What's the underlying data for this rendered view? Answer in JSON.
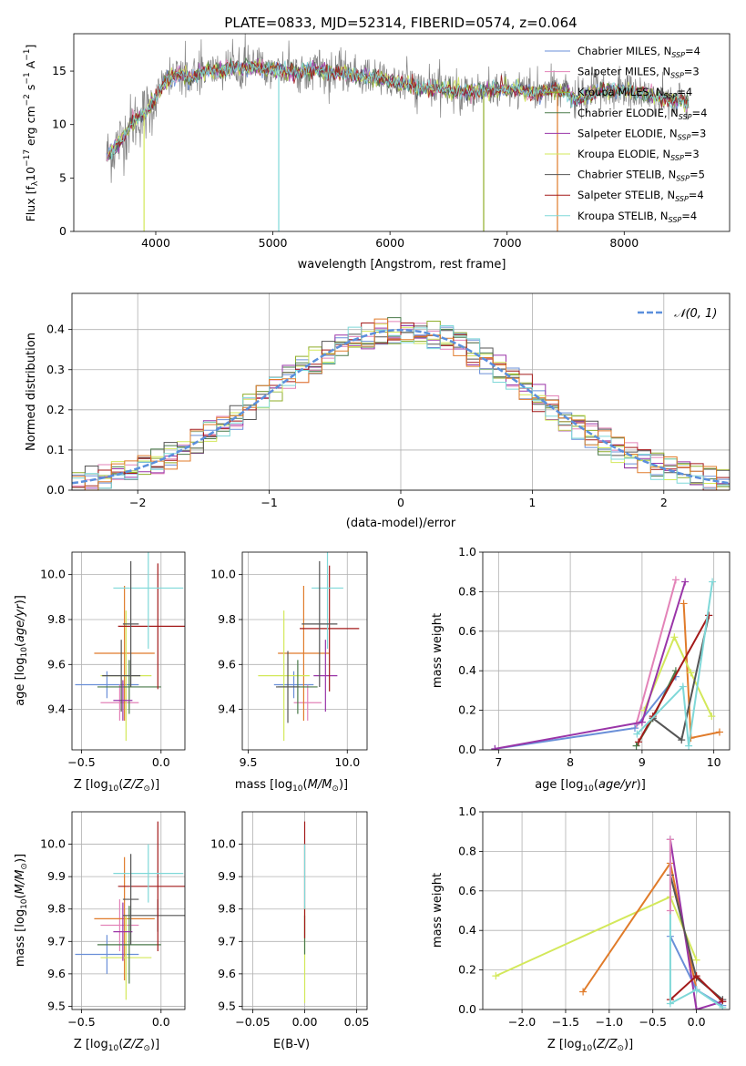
{
  "figure": {
    "title": "PLATE=0833, MJD=52314, FIBERID=0574, z=0.064"
  },
  "colors": {
    "Chabrier MILES": "#6a8fd8",
    "Salpeter MILES": "#e383b8",
    "Kroupa MILES": "#8fae2a",
    "Chabrier ELODIE": "#4a7a4a",
    "Salpeter ELODIE": "#9a35a8",
    "Kroupa ELODIE": "#d3e85a",
    "Chabrier STELIB": "#555555",
    "Salpeter STELIB": "#a31a1a",
    "Kroupa STELIB": "#7fd8d8",
    "orange": "#e07b2a",
    "gray": "#808080"
  },
  "chart_data": [
    {
      "id": "spectrum",
      "type": "line",
      "title": "PLATE=0833, MJD=52314, FIBERID=0574, z=0.064",
      "xlabel": "wavelength [Angstrom, rest frame]",
      "ylabel": "Flux [f_λ 10^-17 erg cm^-2 s^-1 A^-1]",
      "xlim": [
        3300,
        8900
      ],
      "ylim": [
        0,
        18.5
      ],
      "xticks": [
        4000,
        5000,
        6000,
        7000,
        8000
      ],
      "yticks": [
        0,
        5,
        10,
        15
      ],
      "grid": false,
      "legend_position": "top-right",
      "legend": [
        {
          "name": "Chabrier MILES",
          "nssp": "4",
          "color": "#6a8fd8"
        },
        {
          "name": "Salpeter MILES",
          "nssp": "3",
          "color": "#e383b8"
        },
        {
          "name": "Kroupa MILES",
          "nssp": "4",
          "color": "#8fae2a"
        },
        {
          "name": "Chabrier ELODIE",
          "nssp": "4",
          "color": "#4a7a4a"
        },
        {
          "name": "Salpeter ELODIE",
          "nssp": "3",
          "color": "#9a35a8"
        },
        {
          "name": "Kroupa ELODIE",
          "nssp": "3",
          "color": "#d3e85a"
        },
        {
          "name": "Chabrier STELIB",
          "nssp": "5",
          "color": "#555555"
        },
        {
          "name": "Salpeter STELIB",
          "nssp": "4",
          "color": "#a31a1a"
        },
        {
          "name": "Kroupa STELIB",
          "nssp": "4",
          "color": "#7fd8d8"
        }
      ],
      "continuum": [
        [
          3580,
          7.0
        ],
        [
          3700,
          8.5
        ],
        [
          3800,
          10.2
        ],
        [
          3900,
          11.0
        ],
        [
          3950,
          11.5
        ],
        [
          4000,
          12.5
        ],
        [
          4100,
          14.3
        ],
        [
          4200,
          14.8
        ],
        [
          4300,
          14.3
        ],
        [
          4400,
          15.0
        ],
        [
          4500,
          15.0
        ],
        [
          4600,
          15.2
        ],
        [
          4700,
          15.4
        ],
        [
          4800,
          15.4
        ],
        [
          4900,
          15.3
        ],
        [
          5000,
          15.2
        ],
        [
          5100,
          15.0
        ],
        [
          5200,
          14.9
        ],
        [
          5300,
          15.1
        ],
        [
          5400,
          15.1
        ],
        [
          5500,
          14.9
        ],
        [
          5600,
          14.8
        ],
        [
          5700,
          14.6
        ],
        [
          5800,
          14.5
        ],
        [
          5900,
          14.3
        ],
        [
          6000,
          14.1
        ],
        [
          6100,
          13.8
        ],
        [
          6200,
          13.6
        ],
        [
          6300,
          13.4
        ],
        [
          6400,
          13.4
        ],
        [
          6500,
          13.2
        ],
        [
          6600,
          13.1
        ],
        [
          6700,
          13.1
        ],
        [
          6800,
          13.1
        ],
        [
          6900,
          13.3
        ],
        [
          7000,
          13.3
        ],
        [
          7100,
          13.3
        ],
        [
          7200,
          12.9
        ],
        [
          7300,
          13.0
        ],
        [
          7400,
          13.4
        ],
        [
          7500,
          13.0
        ],
        [
          7600,
          12.2
        ],
        [
          7700,
          12.8
        ],
        [
          7800,
          13.1
        ],
        [
          7900,
          13.2
        ],
        [
          8000,
          13.2
        ],
        [
          8100,
          13.0
        ],
        [
          8200,
          12.8
        ],
        [
          8300,
          12.5
        ],
        [
          8400,
          12.3
        ],
        [
          8500,
          12.2
        ],
        [
          8550,
          12.0
        ]
      ]
    },
    {
      "id": "residuals",
      "type": "bar",
      "xlabel": "(data-model)/error",
      "ylabel": "Normed distribution",
      "xlim": [
        -2.5,
        2.5
      ],
      "ylim": [
        0,
        0.49
      ],
      "xticks": [
        -2,
        -1,
        0,
        1,
        2
      ],
      "xticklabels": [
        "−2",
        "−1",
        "0",
        "1",
        "2"
      ],
      "yticks": [
        0.0,
        0.1,
        0.2,
        0.3,
        0.4
      ],
      "yticklabels": [
        "0.0",
        "0.1",
        "0.2",
        "0.3",
        "0.4"
      ],
      "grid": true,
      "legend_position": "top-right",
      "reference_curve": {
        "name": "𝒩(0, 1)",
        "color": "#5b8fdc",
        "style": "dashed",
        "mu": 0,
        "sigma": 1
      }
    },
    {
      "id": "z-age",
      "type": "scatter",
      "xlabel": "Z [log10(Z/Z⊙)]",
      "ylabel": "age [log10(age/yr)]",
      "xlim": [
        -0.56,
        0.15
      ],
      "ylim": [
        9.22,
        10.1
      ],
      "xticks": [
        -0.5,
        0.0
      ],
      "xticklabels": [
        "−0.5",
        "0.0"
      ],
      "yticks": [
        9.4,
        9.6,
        9.8,
        10.0
      ],
      "yticklabels": [
        "9.4",
        "9.6",
        "9.8",
        "10.0"
      ],
      "grid": true,
      "points": [
        {
          "series": "Chabrier MILES",
          "x": -0.34,
          "xerr": 0.2,
          "y": 9.51,
          "yerr": 0.06
        },
        {
          "series": "Salpeter MILES",
          "x": -0.26,
          "xerr": 0.12,
          "y": 9.43,
          "yerr": 0.08
        },
        {
          "series": "orange",
          "x": -0.23,
          "xerr": 0.19,
          "y": 9.65,
          "yerr": 0.3
        },
        {
          "series": "Kroupa ELODIE",
          "x": -0.22,
          "xerr": 0.16,
          "y": 9.55,
          "yerr": 0.29
        },
        {
          "series": "Chabrier ELODIE",
          "x": -0.2,
          "xerr": 0.2,
          "y": 9.5,
          "yerr": 0.12
        },
        {
          "series": "Salpeter ELODIE",
          "x": -0.24,
          "xerr": 0.06,
          "y": 9.44,
          "yerr": 0.09
        },
        {
          "series": "Chabrier STELIB",
          "x": -0.25,
          "xerr": 0.12,
          "y": 9.55,
          "yerr": 0.16
        },
        {
          "series": "Salpeter STELIB",
          "x": -0.02,
          "xerr": 0.25,
          "y": 9.77,
          "yerr": 0.28
        },
        {
          "series": "Kroupa STELIB",
          "x": -0.08,
          "xerr": 0.22,
          "y": 9.94,
          "yerr": 0.27
        },
        {
          "series": "Chabrier STELIB",
          "x": -0.19,
          "xerr": 0.05,
          "y": 9.78,
          "yerr": 0.28
        }
      ]
    },
    {
      "id": "mass-age",
      "type": "scatter",
      "xlabel": "mass [log10(M/M⊙)]",
      "ylabel": "",
      "xlim": [
        9.47,
        10.1
      ],
      "ylim": [
        9.22,
        10.1
      ],
      "xticks": [
        9.5,
        10.0
      ],
      "xticklabels": [
        "9.5",
        "10.0"
      ],
      "yticks": [
        9.4,
        9.6,
        9.8,
        10.0
      ],
      "yticklabels": [
        "9.4",
        "9.6",
        "9.8",
        "10.0"
      ],
      "grid": true,
      "points": [
        {
          "series": "Chabrier MILES",
          "x": 9.73,
          "xerr": 0.1,
          "y": 9.51,
          "yerr": 0.06
        },
        {
          "series": "Salpeter MILES",
          "x": 9.8,
          "xerr": 0.07,
          "y": 9.43,
          "yerr": 0.08
        },
        {
          "series": "orange",
          "x": 9.78,
          "xerr": 0.13,
          "y": 9.65,
          "yerr": 0.3
        },
        {
          "series": "Kroupa ELODIE",
          "x": 9.68,
          "xerr": 0.13,
          "y": 9.55,
          "yerr": 0.29
        },
        {
          "series": "Chabrier ELODIE",
          "x": 9.75,
          "xerr": 0.1,
          "y": 9.5,
          "yerr": 0.12
        },
        {
          "series": "Salpeter ELODIE",
          "x": 9.89,
          "xerr": 0.06,
          "y": 9.55,
          "yerr": 0.16
        },
        {
          "series": "Chabrier STELIB",
          "x": 9.7,
          "xerr": 0.06,
          "y": 9.5,
          "yerr": 0.16
        },
        {
          "series": "Salpeter STELIB",
          "x": 9.91,
          "xerr": 0.15,
          "y": 9.76,
          "yerr": 0.28
        },
        {
          "series": "Kroupa STELIB",
          "x": 9.9,
          "xerr": 0.08,
          "y": 9.94,
          "yerr": 0.27
        },
        {
          "series": "Chabrier STELIB",
          "x": 9.86,
          "xerr": 0.09,
          "y": 9.78,
          "yerr": 0.28
        }
      ]
    },
    {
      "id": "age-weight",
      "type": "line",
      "xlabel": "age [log10(age/yr)]",
      "ylabel": "mass weight",
      "xlim": [
        6.78,
        10.22
      ],
      "ylim": [
        0,
        1.0
      ],
      "xticks": [
        7,
        8,
        9,
        10
      ],
      "yticks": [
        0.0,
        0.2,
        0.4,
        0.6,
        0.8,
        1.0
      ],
      "yticklabels": [
        "0.0",
        "0.2",
        "0.4",
        "0.6",
        "0.8",
        "1.0"
      ],
      "grid": true,
      "series": [
        {
          "name": "Chabrier MILES",
          "points": [
            [
              6.95,
              0.005
            ],
            [
              8.9,
              0.11
            ],
            [
              9.47,
              0.37
            ]
          ]
        },
        {
          "name": "Salpeter MILES",
          "points": [
            [
              8.92,
              0.13
            ],
            [
              9.47,
              0.86
            ]
          ]
        },
        {
          "name": "orange",
          "points": [
            [
              9.58,
              0.74
            ],
            [
              9.68,
              0.06
            ],
            [
              10.08,
              0.09
            ]
          ]
        },
        {
          "name": "Kroupa ELODIE",
          "points": [
            [
              9.03,
              0.2
            ],
            [
              9.45,
              0.57
            ],
            [
              9.68,
              0.39
            ],
            [
              9.97,
              0.17
            ]
          ]
        },
        {
          "name": "Chabrier ELODIE",
          "points": [
            [
              8.92,
              0.02
            ],
            [
              9.15,
              0.16
            ],
            [
              9.47,
              0.4
            ]
          ]
        },
        {
          "name": "Salpeter ELODIE",
          "points": [
            [
              6.95,
              0.005
            ],
            [
              9.0,
              0.14
            ],
            [
              9.6,
              0.85
            ]
          ]
        },
        {
          "name": "Chabrier STELIB",
          "points": [
            [
              9.15,
              0.16
            ],
            [
              9.55,
              0.05
            ],
            [
              9.93,
              0.68
            ]
          ]
        },
        {
          "name": "Salpeter STELIB",
          "points": [
            [
              8.95,
              0.04
            ],
            [
              9.15,
              0.17
            ],
            [
              9.93,
              0.68
            ]
          ]
        },
        {
          "name": "Kroupa STELIB",
          "points": [
            [
              8.93,
              0.08
            ],
            [
              9.57,
              0.32
            ],
            [
              9.65,
              0.02
            ],
            [
              9.98,
              0.85
            ]
          ]
        }
      ]
    },
    {
      "id": "z-mass",
      "type": "scatter",
      "xlabel": "Z [log10(Z/Z⊙)]",
      "ylabel": "mass [log10(M/M⊙)]",
      "xlim": [
        -0.56,
        0.15
      ],
      "ylim": [
        9.49,
        10.1
      ],
      "xticks": [
        -0.5,
        0.0
      ],
      "xticklabels": [
        "−0.5",
        "0.0"
      ],
      "yticks": [
        9.5,
        9.6,
        9.7,
        9.8,
        9.9,
        10.0
      ],
      "yticklabels": [
        "9.5",
        "9.6",
        "9.7",
        "9.8",
        "9.9",
        "10.0"
      ],
      "grid": true,
      "points": [
        {
          "series": "Chabrier MILES",
          "x": -0.34,
          "xerr": 0.2,
          "y": 9.66,
          "yerr": 0.06
        },
        {
          "series": "Salpeter MILES",
          "x": -0.26,
          "xerr": 0.12,
          "y": 9.75,
          "yerr": 0.08
        },
        {
          "series": "orange",
          "x": -0.23,
          "xerr": 0.19,
          "y": 9.77,
          "yerr": 0.19
        },
        {
          "series": "Kroupa ELODIE",
          "x": -0.22,
          "xerr": 0.16,
          "y": 9.65,
          "yerr": 0.13
        },
        {
          "series": "Chabrier ELODIE",
          "x": -0.2,
          "xerr": 0.2,
          "y": 9.69,
          "yerr": 0.12
        },
        {
          "series": "Salpeter ELODIE",
          "x": -0.24,
          "xerr": 0.06,
          "y": 9.73,
          "yerr": 0.09
        },
        {
          "series": "Chabrier STELIB",
          "x": -0.02,
          "xerr": 0.22,
          "y": 9.78,
          "yerr": 0.05
        },
        {
          "series": "Salpeter STELIB",
          "x": -0.02,
          "xerr": 0.25,
          "y": 9.87,
          "yerr": 0.2
        },
        {
          "series": "Kroupa STELIB",
          "x": -0.08,
          "xerr": 0.22,
          "y": 9.91,
          "yerr": 0.09
        },
        {
          "series": "Chabrier STELIB",
          "x": -0.19,
          "xerr": 0.05,
          "y": 9.83,
          "yerr": 0.14
        }
      ]
    },
    {
      "id": "ebv-mass",
      "type": "scatter",
      "xlabel": "E(B-V)",
      "ylabel": "",
      "xlim": [
        -0.06,
        0.06
      ],
      "ylim": [
        9.49,
        10.1
      ],
      "xticks": [
        -0.05,
        0.0,
        0.05
      ],
      "xticklabels": [
        "−0.05",
        "0.00",
        "0.05"
      ],
      "yticks": [
        9.5,
        9.6,
        9.7,
        9.8,
        9.9,
        10.0
      ],
      "yticklabels": [
        "9.5",
        "9.6",
        "9.7",
        "9.8",
        "9.9",
        "10.0"
      ],
      "grid": true,
      "points": [
        {
          "series": "Kroupa ELODIE",
          "x": 0.0,
          "xerr": 0,
          "y": 9.66,
          "yerr": 0.15
        },
        {
          "series": "Chabrier ELODIE",
          "x": 0.0,
          "xerr": 0,
          "y": 9.72,
          "yerr": 0.06
        },
        {
          "series": "Salpeter STELIB",
          "x": 0.0,
          "xerr": 0,
          "y": 9.89,
          "yerr": 0.18
        },
        {
          "series": "Kroupa STELIB",
          "x": 0.0,
          "xerr": 0,
          "y": 9.9,
          "yerr": 0.1
        }
      ]
    },
    {
      "id": "z-weight",
      "type": "line",
      "xlabel": "Z [log10(Z/Z⊙)]",
      "ylabel": "mass weight",
      "xlim": [
        -2.45,
        0.38
      ],
      "ylim": [
        0,
        1.0
      ],
      "xticks": [
        -2.0,
        -1.5,
        -1.0,
        -0.5,
        0.0
      ],
      "xticklabels": [
        "−2.0",
        "−1.5",
        "−1.0",
        "−0.5",
        "0.0"
      ],
      "yticks": [
        0.0,
        0.2,
        0.4,
        0.6,
        0.8,
        1.0
      ],
      "yticklabels": [
        "0.0",
        "0.2",
        "0.4",
        "0.6",
        "0.8",
        "1.0"
      ],
      "grid": true,
      "series": [
        {
          "name": "Kroupa ELODIE",
          "points": [
            [
              -2.3,
              0.17
            ],
            [
              -0.3,
              0.57
            ],
            [
              0.0,
              0.25
            ]
          ]
        },
        {
          "name": "orange",
          "points": [
            [
              -1.3,
              0.09
            ],
            [
              -0.3,
              0.74
            ],
            [
              0.0,
              0.1
            ]
          ]
        },
        {
          "name": "Chabrier MILES",
          "points": [
            [
              -0.3,
              0.37
            ],
            [
              0.0,
              0.1
            ],
            [
              0.3,
              0.02
            ]
          ]
        },
        {
          "name": "Salpeter ELODIE",
          "points": [
            [
              -0.3,
              0.86
            ],
            [
              0.0,
              0.0
            ],
            [
              0.3,
              0.04
            ]
          ]
        },
        {
          "name": "Chabrier STELIB",
          "points": [
            [
              -0.3,
              0.68
            ],
            [
              0.0,
              0.16
            ],
            [
              0.3,
              0.05
            ]
          ]
        },
        {
          "name": "Salpeter STELIB",
          "points": [
            [
              -0.3,
              0.05
            ],
            [
              0.0,
              0.17
            ],
            [
              0.3,
              0.04
            ]
          ]
        },
        {
          "name": "Kroupa STELIB",
          "points": [
            [
              -0.3,
              0.86
            ],
            [
              -0.3,
              0.03
            ],
            [
              0.0,
              0.1
            ],
            [
              0.3,
              0.01
            ]
          ]
        },
        {
          "name": "Salpeter MILES",
          "points": [
            [
              -0.3,
              0.86
            ],
            [
              -0.3,
              0.5
            ]
          ]
        }
      ]
    }
  ]
}
